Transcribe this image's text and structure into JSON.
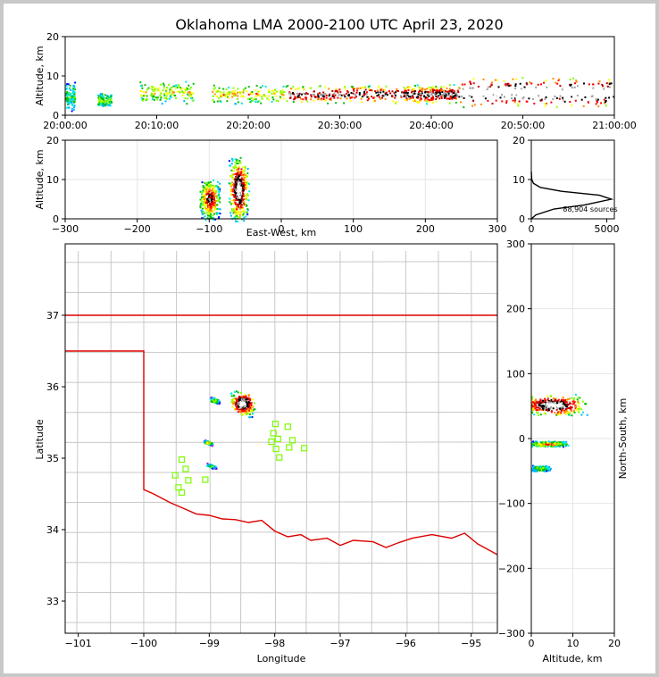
{
  "title": "Oklahoma LMA 2000-2100 UTC April 23, 2020",
  "colors": {
    "state_border": "#dd0000",
    "county_lines": "#c8c8c8",
    "station_marker": "#7cfc00",
    "histogram_line": "#000000"
  },
  "panels": {
    "time_height": {
      "ylabel": "Altitude, km",
      "ylim": [
        0,
        20
      ],
      "yticks": [
        "0",
        "10",
        "20"
      ],
      "xticks": [
        "20:00:00",
        "20:10:00",
        "20:20:00",
        "20:30:00",
        "20:40:00",
        "20:50:00",
        "21:00:00"
      ]
    },
    "ew_height": {
      "ylabel": "Altitude, km",
      "xlabel": "East-West, km",
      "xlim": [
        -300,
        300
      ],
      "ylim": [
        0,
        20
      ],
      "xticks": [
        "−300",
        "−200",
        "−100",
        "0",
        "100",
        "200",
        "300"
      ],
      "yticks": [
        "0",
        "10",
        "20"
      ]
    },
    "histogram": {
      "annotation": "88,904 sources",
      "xticks": [
        "0",
        "5000"
      ],
      "yticks": [
        "0",
        "10",
        "20"
      ]
    },
    "plan": {
      "xlabel": "Longitude",
      "ylabel": "Latitude",
      "xticks": [
        "−101",
        "−100",
        "−99",
        "−98",
        "−97",
        "−96",
        "−95"
      ],
      "yticks": [
        "33",
        "34",
        "35",
        "36",
        "37"
      ]
    },
    "ns_height": {
      "xlabel": "Altitude, km",
      "ylabel": "North-South, km",
      "xticks": [
        "0",
        "10",
        "20"
      ],
      "yticks": [
        "−300",
        "−200",
        "−100",
        "0",
        "100",
        "200",
        "300"
      ]
    }
  },
  "chart_data": [
    {
      "type": "heatmap",
      "name": "time-height source density",
      "x_range": [
        "20:00:00",
        "21:00:00"
      ],
      "ylim": [
        0,
        20
      ],
      "clusters": [
        {
          "t_min": [
            0,
            1
          ],
          "alt": [
            1,
            9
          ],
          "density": 0.25
        },
        {
          "t_min": [
            3.5,
            5
          ],
          "alt": [
            2,
            6
          ],
          "density": 0.3
        },
        {
          "t_min": [
            8,
            14
          ],
          "alt": [
            3,
            9
          ],
          "density": 0.4
        },
        {
          "t_min": [
            16,
            24
          ],
          "alt": [
            3,
            8
          ],
          "density": 0.45
        },
        {
          "t_min": [
            24,
            37
          ],
          "alt": [
            3,
            8
          ],
          "density": 0.75
        },
        {
          "t_min": [
            37,
            43
          ],
          "alt": [
            3,
            8
          ],
          "density": 0.8
        },
        {
          "t_min": [
            43,
            60
          ],
          "alt": [
            2,
            10
          ],
          "density": 1.0
        }
      ]
    },
    {
      "type": "heatmap",
      "name": "east-west vs altitude",
      "xlim": [
        -300,
        300
      ],
      "ylim": [
        0,
        20
      ],
      "clusters": [
        {
          "x": [
            -115,
            -85
          ],
          "alt": [
            1,
            12
          ],
          "density": 0.8
        },
        {
          "x": [
            -75,
            -45
          ],
          "alt": [
            1,
            18
          ],
          "density": 1.0
        }
      ]
    },
    {
      "type": "line",
      "name": "source count by altitude",
      "xlim": [
        0,
        5500
      ],
      "ylim": [
        0,
        20
      ],
      "x": [
        0,
        300,
        1500,
        3500,
        5300,
        4500,
        2000,
        600,
        150,
        30,
        0
      ],
      "y": [
        0,
        1,
        2.5,
        3.5,
        5,
        6,
        7,
        8,
        9,
        10,
        12
      ]
    },
    {
      "type": "heatmap",
      "name": "north-south vs altitude",
      "xlim": [
        0,
        20
      ],
      "ylim": [
        -300,
        300
      ],
      "clusters": [
        {
          "alt": [
            0,
            17
          ],
          "ns": [
            35,
            70
          ],
          "density": 1.0
        },
        {
          "alt": [
            1,
            12
          ],
          "ns": [
            -12,
            -3
          ],
          "density": 0.6
        },
        {
          "alt": [
            1,
            6
          ],
          "ns": [
            -50,
            -40
          ],
          "density": 0.4
        }
      ]
    },
    {
      "type": "scatter",
      "name": "plan view sources",
      "clusters": [
        {
          "lon": [
            -98.7,
            -98.3
          ],
          "lat": [
            35.6,
            35.95
          ],
          "density": 1.0
        },
        {
          "lon": [
            -99.0,
            -98.85
          ],
          "lat": [
            35.78,
            35.85
          ],
          "density": 0.5
        },
        {
          "lon": [
            -99.1,
            -98.95
          ],
          "lat": [
            35.2,
            35.25
          ],
          "density": 0.5
        },
        {
          "lon": [
            -99.05,
            -98.9
          ],
          "lat": [
            34.87,
            34.92
          ],
          "density": 0.4
        }
      ],
      "stations": [
        [
          -97.99,
          35.48
        ],
        [
          -97.8,
          35.44
        ],
        [
          -98.02,
          35.35
        ],
        [
          -97.95,
          35.27
        ],
        [
          -98.05,
          35.23
        ],
        [
          -97.73,
          35.25
        ],
        [
          -97.55,
          35.14
        ],
        [
          -97.78,
          35.15
        ],
        [
          -97.98,
          35.13
        ],
        [
          -97.93,
          35.01
        ],
        [
          -99.42,
          34.98
        ],
        [
          -99.36,
          34.85
        ],
        [
          -99.52,
          34.76
        ],
        [
          -99.32,
          34.69
        ],
        [
          -99.06,
          34.7
        ],
        [
          -99.47,
          34.59
        ],
        [
          -99.42,
          34.52
        ]
      ]
    }
  ]
}
